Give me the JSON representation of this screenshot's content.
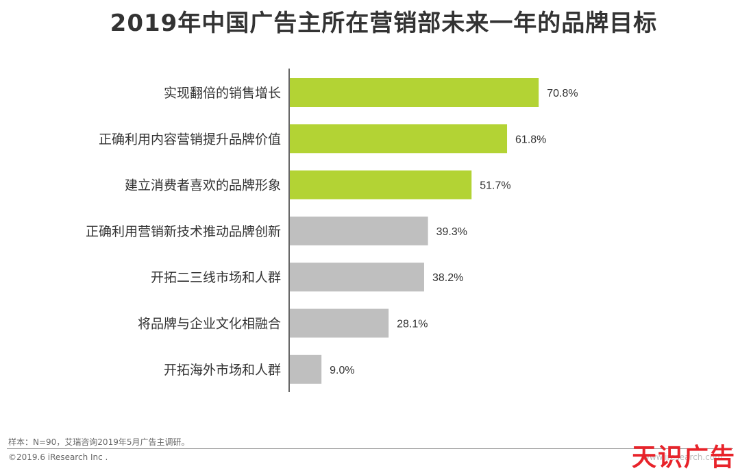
{
  "title": "2019年中国广告主所在营销部未来一年的品牌目标",
  "footnote": "样本：N=90，艾瑞咨询2019年5月广告主调研。",
  "copyright": "©2019.6 iResearch Inc .",
  "watermark": "天识广告",
  "url": "www.iresearch.com",
  "colors": {
    "highlight": "#b3d334",
    "normal": "#bfbfbf",
    "axis": "#333333",
    "text": "#333333"
  },
  "chart_data": {
    "type": "bar",
    "orientation": "horizontal",
    "categories": [
      "实现翻倍的销售增长",
      "正确利用内容营销提升品牌价值",
      "建立消费者喜欢的品牌形象",
      "正确利用营销新技术推动品牌创新",
      "开拓二三线市场和人群",
      "将品牌与企业文化相融合",
      "开拓海外市场和人群"
    ],
    "values": [
      70.8,
      61.8,
      51.7,
      39.3,
      38.2,
      28.1,
      9.0
    ],
    "data_labels": [
      "70.8%",
      "61.8%",
      "51.7%",
      "39.3%",
      "38.2%",
      "28.1%",
      "9.0%"
    ],
    "highlighted": [
      true,
      true,
      true,
      false,
      false,
      false,
      false
    ],
    "xlim": [
      0,
      100
    ],
    "grid": false,
    "legend": "none"
  }
}
